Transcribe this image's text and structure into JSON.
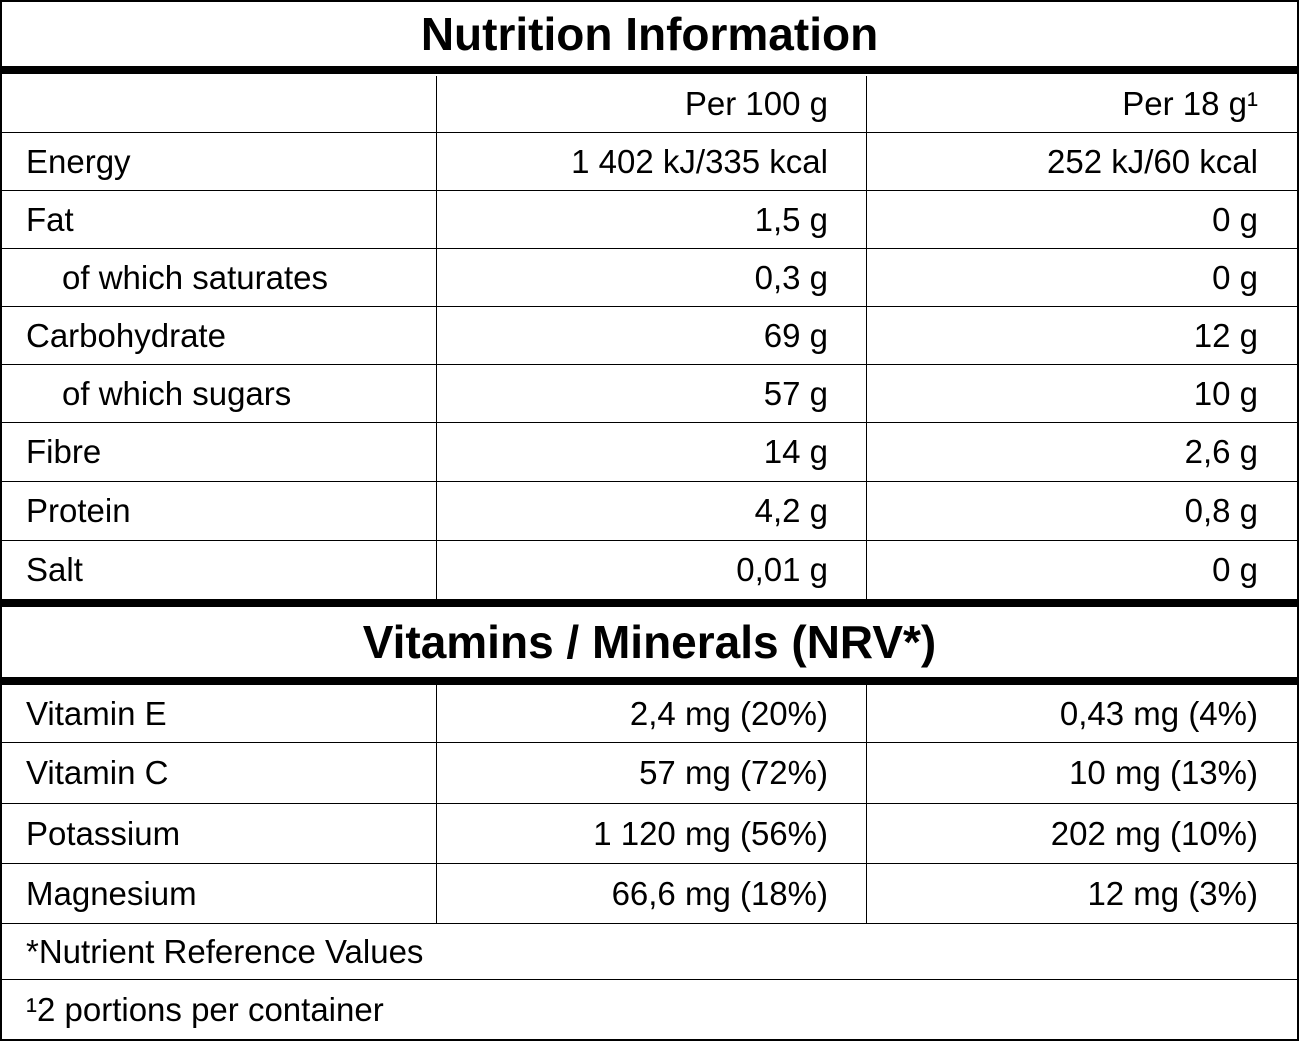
{
  "title": "Nutrition Information",
  "columns": [
    "",
    "Per 100 g",
    "Per 18 g¹"
  ],
  "nutrients": [
    {
      "label": "Energy",
      "indent": false,
      "per100": "1 402 kJ/335 kcal",
      "perServing": "252 kJ/60 kcal"
    },
    {
      "label": "Fat",
      "indent": false,
      "per100": "1,5 g",
      "perServing": "0 g"
    },
    {
      "label": "of which saturates",
      "indent": true,
      "per100": "0,3 g",
      "perServing": "0 g"
    },
    {
      "label": "Carbohydrate",
      "indent": false,
      "per100": "69 g",
      "perServing": "12 g"
    },
    {
      "label": "of which sugars",
      "indent": true,
      "per100": "57 g",
      "perServing": "10 g"
    },
    {
      "label": "Fibre",
      "indent": false,
      "per100": "14 g",
      "perServing": "2,6 g"
    },
    {
      "label": "Protein",
      "indent": false,
      "per100": "4,2 g",
      "perServing": "0,8 g"
    },
    {
      "label": "Salt",
      "indent": false,
      "per100": "0,01 g",
      "perServing": "0 g"
    }
  ],
  "vitamins_title": "Vitamins / Minerals (NRV*)",
  "vitamins": [
    {
      "label": "Vitamin E",
      "per100": "2,4 mg (20%)",
      "perServing": "0,43 mg (4%)"
    },
    {
      "label": "Vitamin C",
      "per100": "57 mg (72%)",
      "perServing": "10 mg (13%)"
    },
    {
      "label": "Potassium",
      "per100": "1 120 mg (56%)",
      "perServing": "202 mg (10%)"
    },
    {
      "label": "Magnesium",
      "per100": "66,6 mg (18%)",
      "perServing": "12 mg (3%)"
    }
  ],
  "footnotes": [
    "*Nutrient Reference Values",
    "¹2 portions per container"
  ]
}
